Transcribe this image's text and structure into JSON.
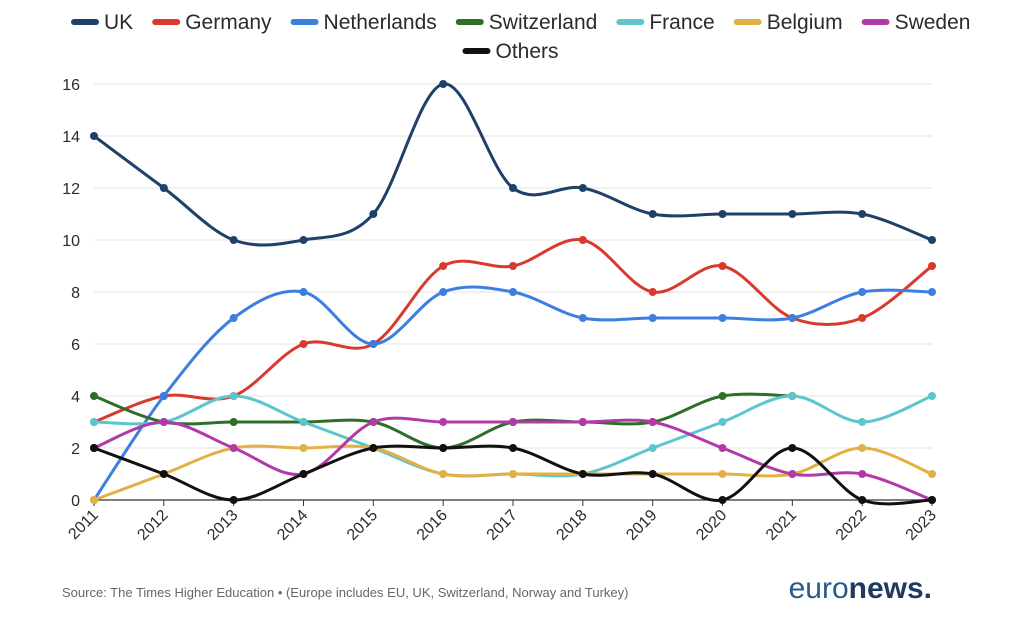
{
  "chart_data": {
    "type": "line",
    "x": [
      "2011",
      "2012",
      "2013",
      "2014",
      "2015",
      "2016",
      "2017",
      "2018",
      "2019",
      "2020",
      "2021",
      "2022",
      "2023"
    ],
    "ylim": [
      0,
      16
    ],
    "yticks": [
      0,
      2,
      4,
      6,
      8,
      10,
      12,
      14,
      16
    ],
    "grid": "horizontal",
    "legend_position": "top",
    "series": [
      {
        "name": "UK",
        "color": "#1f4068",
        "values": [
          14,
          12,
          10,
          10,
          11,
          16,
          12,
          12,
          11,
          11,
          11,
          11,
          10
        ]
      },
      {
        "name": "Germany",
        "color": "#d83a2e",
        "values": [
          3,
          4,
          4,
          6,
          6,
          9,
          9,
          10,
          8,
          9,
          7,
          7,
          9
        ]
      },
      {
        "name": "Netherlands",
        "color": "#3d7ee0",
        "values": [
          0,
          4,
          7,
          8,
          6,
          8,
          8,
          7,
          7,
          7,
          7,
          8,
          8
        ]
      },
      {
        "name": "Switzerland",
        "color": "#2f6e2a",
        "values": [
          4,
          3,
          3,
          3,
          3,
          2,
          3,
          3,
          3,
          4,
          4,
          null,
          null
        ]
      },
      {
        "name": "France",
        "color": "#5cc6cc",
        "values": [
          3,
          3,
          4,
          3,
          2,
          1,
          1,
          1,
          2,
          3,
          4,
          3,
          4
        ]
      },
      {
        "name": "Belgium",
        "color": "#e3b043",
        "values": [
          0,
          1,
          2,
          2,
          2,
          1,
          1,
          1,
          1,
          1,
          1,
          2,
          1
        ]
      },
      {
        "name": "Sweden",
        "color": "#b23aa8",
        "values": [
          2,
          3,
          2,
          1,
          3,
          3,
          3,
          3,
          3,
          2,
          1,
          1,
          0
        ]
      },
      {
        "name": "Others",
        "color": "#111111",
        "values": [
          2,
          1,
          0,
          1,
          2,
          2,
          2,
          1,
          1,
          0,
          2,
          0,
          0
        ]
      }
    ]
  },
  "footer": {
    "source": "Source: The Times Higher Education • (Europe includes EU, UK, Switzerland, Norway and Turkey)",
    "brand_prefix": "euro",
    "brand_suffix": "news."
  },
  "colors": {
    "grid": "#e3e3e3",
    "axis": "#333333",
    "brand_prefix": "#2a5a8a",
    "brand_suffix": "#1e3b5e"
  }
}
